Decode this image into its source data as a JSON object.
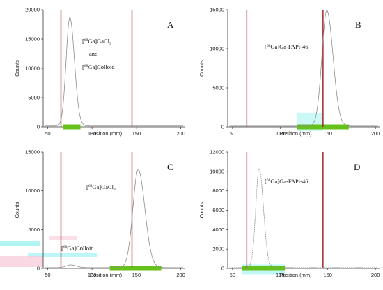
{
  "chart_data": [
    {
      "type": "line",
      "panel_label": "A",
      "xlabel": "Position (mm)",
      "ylabel": "Counts",
      "xlim": [
        45,
        205
      ],
      "ylim": [
        0,
        20000
      ],
      "xticks": [
        "50",
        "100",
        "150",
        "200"
      ],
      "yticks": [
        "0",
        "5000",
        "10000",
        "15000",
        "20000"
      ],
      "peaks": [
        {
          "center": 75,
          "height": 18500,
          "sigma": 4.2
        }
      ],
      "baseline": 150,
      "roi_lines_x": [
        65,
        145
      ],
      "green_bar": [
        67,
        87
      ],
      "annotations": [
        {
          "lines": [
            [
              "[",
              "68",
              "Ga]GaCl",
              "3"
            ],
            [
              "and"
            ],
            [
              "[",
              "68",
              "Ga]Colloid",
              ""
            ]
          ]
        }
      ]
    },
    {
      "type": "line",
      "panel_label": "B",
      "xlabel": "Position (mm)",
      "ylabel": "Counts",
      "xlim": [
        45,
        205
      ],
      "ylim": [
        0,
        15000
      ],
      "xticks": [
        "50",
        "100",
        "150",
        "200"
      ],
      "yticks": [
        "0",
        "5000",
        "10000",
        "15000"
      ],
      "peaks": [
        {
          "center": 149,
          "height": 14800,
          "sigma": 5.2
        }
      ],
      "baseline": 100,
      "roi_lines_x": [
        65,
        145
      ],
      "green_bar": [
        118,
        172
      ],
      "annotations": [
        {
          "lines": [
            [
              "[",
              "68",
              "Ga]Ga-FAPi-46",
              ""
            ]
          ]
        }
      ]
    },
    {
      "type": "line",
      "panel_label": "C",
      "xlabel": "Position (mm)",
      "ylabel": "Counts",
      "xlim": [
        45,
        205
      ],
      "ylim": [
        0,
        15000
      ],
      "xticks": [
        "50",
        "100",
        "150",
        "200"
      ],
      "yticks": [
        "0",
        "5000",
        "10000",
        "15000"
      ],
      "peaks": [
        {
          "center": 152,
          "height": 12600,
          "sigma": 6
        },
        {
          "center": 76,
          "height": 350,
          "sigma": 5
        }
      ],
      "baseline": 100,
      "roi_lines_x": [
        65,
        145
      ],
      "green_bar": [
        120,
        178
      ],
      "annotations": [
        {
          "lines": [
            [
              "[",
              "68",
              "Ga]GaCl",
              "3"
            ]
          ]
        },
        {
          "lines": [
            [
              "[",
              "68",
              "Ga]Colloid",
              ""
            ]
          ]
        }
      ]
    },
    {
      "type": "line",
      "panel_label": "D",
      "xlabel": "Position (mm)",
      "ylabel": "Counts",
      "xlim": [
        45,
        205
      ],
      "ylim": [
        0,
        12000
      ],
      "xticks": [
        "50",
        "100",
        "150",
        "200"
      ],
      "yticks": [
        "0",
        "2000",
        "4000",
        "6000",
        "8000",
        "10000",
        "12000"
      ],
      "peaks": [
        {
          "center": 78,
          "height": 10200,
          "sigma": 3.6
        }
      ],
      "baseline": 80,
      "roi_lines_x": [
        65,
        145
      ],
      "green_bar": [
        60,
        105
      ],
      "annotations": [
        {
          "lines": [
            [
              "[",
              "68",
              "Ga]Ga-FAPi-46",
              ""
            ]
          ]
        }
      ]
    }
  ],
  "colors": {
    "curve": "#8c8c8c",
    "roi_line": "#a01818",
    "green_bar": "#66c21a",
    "axis": "#333333",
    "cyan_noise": "#8ff0f0",
    "pink_noise": "#f6c8d8"
  }
}
